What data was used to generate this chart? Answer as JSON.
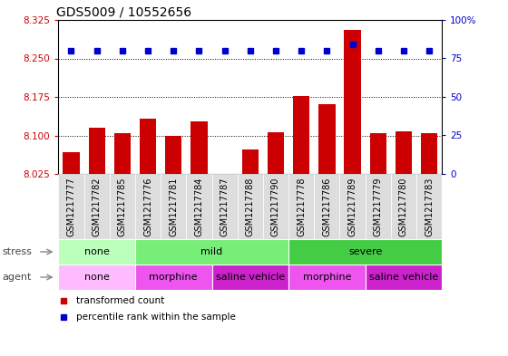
{
  "title": "GDS5009 / 10552656",
  "samples": [
    "GSM1217777",
    "GSM1217782",
    "GSM1217785",
    "GSM1217776",
    "GSM1217781",
    "GSM1217784",
    "GSM1217787",
    "GSM1217788",
    "GSM1217790",
    "GSM1217778",
    "GSM1217786",
    "GSM1217789",
    "GSM1217779",
    "GSM1217780",
    "GSM1217783"
  ],
  "transformed_count": [
    8.068,
    8.115,
    8.105,
    8.132,
    8.1,
    8.128,
    8.025,
    8.072,
    8.107,
    8.177,
    8.16,
    8.305,
    8.104,
    8.108,
    8.104
  ],
  "percentile": [
    80,
    80,
    80,
    80,
    80,
    80,
    80,
    80,
    80,
    80,
    80,
    84,
    80,
    80,
    80
  ],
  "ylim_left": [
    8.025,
    8.325
  ],
  "ylim_right": [
    0,
    100
  ],
  "yticks_left": [
    8.025,
    8.1,
    8.175,
    8.25,
    8.325
  ],
  "yticks_right": [
    0,
    25,
    50,
    75,
    100
  ],
  "stress_groups": [
    {
      "label": "none",
      "start": 0,
      "end": 3,
      "color": "#bbffbb"
    },
    {
      "label": "mild",
      "start": 3,
      "end": 9,
      "color": "#77ee77"
    },
    {
      "label": "severe",
      "start": 9,
      "end": 15,
      "color": "#44cc44"
    }
  ],
  "agent_groups": [
    {
      "label": "none",
      "start": 0,
      "end": 3,
      "color": "#ffbbff"
    },
    {
      "label": "morphine",
      "start": 3,
      "end": 6,
      "color": "#ee55ee"
    },
    {
      "label": "saline vehicle",
      "start": 6,
      "end": 9,
      "color": "#cc22cc"
    },
    {
      "label": "morphine",
      "start": 9,
      "end": 12,
      "color": "#ee55ee"
    },
    {
      "label": "saline vehicle",
      "start": 12,
      "end": 15,
      "color": "#cc22cc"
    }
  ],
  "bar_color": "#cc0000",
  "dot_color": "#0000cc",
  "bar_bottom": 8.025,
  "tick_color_left": "#cc0000",
  "tick_color_right": "#0000cc",
  "label_fontsize": 7,
  "row_fontsize": 8,
  "title_fontsize": 10
}
